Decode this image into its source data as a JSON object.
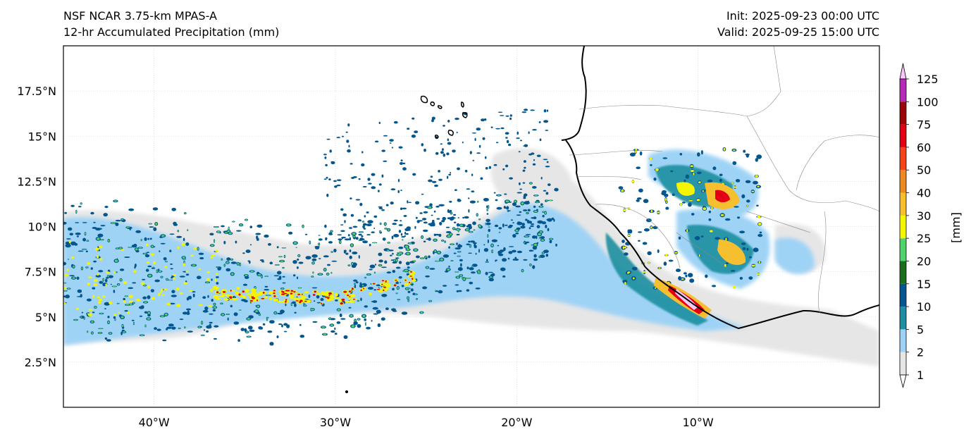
{
  "header": {
    "left_line1": "NSF NCAR 3.75-km MPAS-A",
    "left_line2": "12-hr Accumulated Precipitation (mm)",
    "right_line1": "Init: 2025-09-23 00:00 UTC",
    "right_line2": "Valid: 2025-09-25 15:00 UTC"
  },
  "map": {
    "lon_range": [
      -45,
      0
    ],
    "lat_range": [
      0,
      20
    ],
    "lon_ticks": [
      {
        "value": -40,
        "label": "40°W"
      },
      {
        "value": -30,
        "label": "30°W"
      },
      {
        "value": -20,
        "label": "20°W"
      },
      {
        "value": -10,
        "label": "10°W"
      }
    ],
    "lat_ticks": [
      {
        "value": 17.5,
        "label": "17.5°N"
      },
      {
        "value": 15,
        "label": "15°N"
      },
      {
        "value": 12.5,
        "label": "12.5°N"
      },
      {
        "value": 10,
        "label": "10°N"
      },
      {
        "value": 7.5,
        "label": "7.5°N"
      },
      {
        "value": 5,
        "label": "5°N"
      },
      {
        "value": 2.5,
        "label": "2.5°N"
      }
    ]
  },
  "colorbar": {
    "unit_label": "[mm]",
    "levels": [
      "1",
      "2",
      "5",
      "10",
      "15",
      "20",
      "25",
      "30",
      "40",
      "50",
      "60",
      "75",
      "100",
      "125"
    ],
    "colors": [
      "#e6e6e6",
      "#9fd3f6",
      "#1e8fa0",
      "#04578e",
      "#1b6e1e",
      "#4fd36a",
      "#f5f500",
      "#f6bf2f",
      "#ee8a22",
      "#f5431a",
      "#e40014",
      "#9c0505",
      "#b72ab9",
      "#f7c7f7"
    ],
    "extend_low_color": "#ffffff",
    "extend_high_color": "#f7c7f7"
  }
}
